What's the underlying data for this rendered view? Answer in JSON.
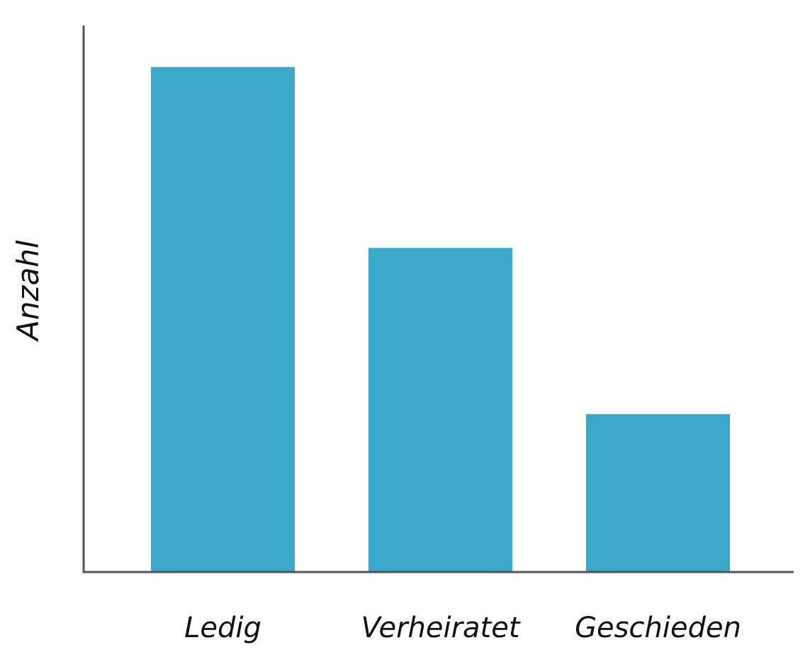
{
  "chart_data": {
    "type": "bar",
    "title": "",
    "xlabel": "",
    "ylabel": "Anzahl",
    "categories": [
      "Ledig",
      "Verheiratet",
      "Geschieden"
    ],
    "values": [
      92.4,
      59.3,
      28.9
    ],
    "ylim": [
      0,
      100
    ],
    "value_scale": "relative (no y tick labels shown)",
    "grid": false,
    "legend": "none",
    "bar_color": "#3aa8c9",
    "axis_color": "#555555"
  }
}
